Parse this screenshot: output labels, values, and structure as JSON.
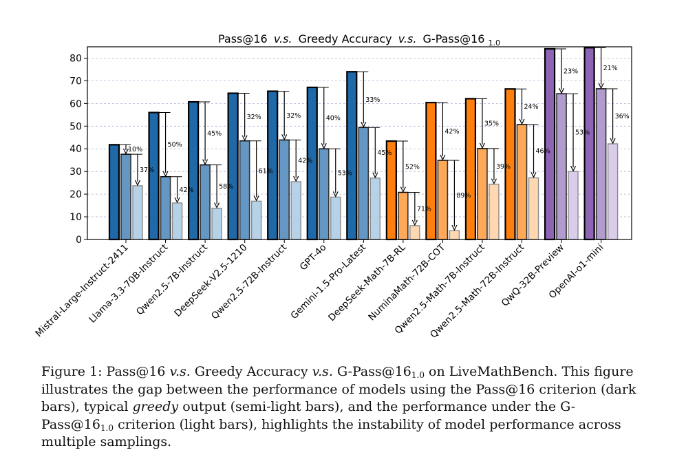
{
  "chart_data": {
    "type": "bar",
    "title": {
      "main": "Pass@16",
      "vs1": "v.s.",
      "mid": "Greedy Accuracy",
      "vs2": "v.s.",
      "end": "G-Pass@16",
      "subscript": "1.0"
    },
    "ylim": [
      0,
      85
    ],
    "yticks": [
      0,
      10,
      20,
      30,
      40,
      50,
      60,
      70,
      80
    ],
    "grid": true,
    "categories": [
      "Mistral-Large-Instruct-2411",
      "Llama-3.3-70B-Instruct",
      "Qwen2.5-7B-Instruct",
      "DeepSeek-V2.5-1210",
      "Qwen2.5-72B-Instruct",
      "GPT-4o",
      "Gemini-1.5-Pro-Latest",
      "DeepSeek-Math-7B-RL",
      "NuminaMath-72B-COT",
      "Qwen2.5-Math-7B-Instruct",
      "Qwen2.5-Math-72B-Instruct",
      "QwQ-32B-Preview",
      "OpenAI-o1-mini"
    ],
    "groups": [
      "blue",
      "blue",
      "blue",
      "blue",
      "blue",
      "blue",
      "blue",
      "orange",
      "orange",
      "orange",
      "orange",
      "purple",
      "purple"
    ],
    "series": [
      {
        "values": [
          41.8,
          56.0,
          60.7,
          64.5,
          65.4,
          67.1,
          74.0,
          43.4,
          60.4,
          62.1,
          66.4,
          84.1,
          84.6
        ]
      },
      {
        "values": [
          37.6,
          27.7,
          32.9,
          43.5,
          43.9,
          40.0,
          49.4,
          20.8,
          34.9,
          40.1,
          50.7,
          64.3,
          66.5
        ]
      },
      {
        "values": [
          23.7,
          16.1,
          13.8,
          16.9,
          25.5,
          18.7,
          27.1,
          6.1,
          3.9,
          24.4,
          27.2,
          30.0,
          42.2
        ]
      }
    ],
    "annotations": {
      "drop1": [
        "10%",
        "50%",
        "45%",
        "32%",
        "32%",
        "40%",
        "33%",
        "52%",
        "42%",
        "35%",
        "24%",
        "23%",
        "21%"
      ],
      "drop2": [
        "37%",
        "42%",
        "58%",
        "61%",
        "42%",
        "53%",
        "45%",
        "71%",
        "89%",
        "39%",
        "46%",
        "53%",
        "36%"
      ]
    },
    "colors": {
      "blue": [
        "#1f69a8",
        "#6497c3",
        "#b6d2e8"
      ],
      "orange": [
        "#ff7f0e",
        "#fea95a",
        "#ffd8b2"
      ],
      "purple": [
        "#8e64b5",
        "#b19bcf",
        "#d9cdea"
      ],
      "edge_dark": "#000000",
      "edge_mid": "#333333",
      "edge_light": "#8a8a8a",
      "grid": "#b0b0d8"
    }
  },
  "caption": {
    "prefix": "Figure 1: Pass@16 ",
    "vs1": "v.s.",
    "mid": " Greedy Accuracy ",
    "vs2": "v.s.",
    "gpass": " G-Pass@16",
    "sub1": "1.0",
    "after_sub1": " on LiveMathBench. This figure illustrates the gap between the performance of models using the Pass@16 criterion (dark bars), typical ",
    "greedy": "greedy",
    "after_greedy": " output (semi-light bars), and the performance under the G-Pass@16",
    "sub2": "1.0",
    "end": " criterion (light bars), highlights the instability of model performance across multiple samplings."
  }
}
